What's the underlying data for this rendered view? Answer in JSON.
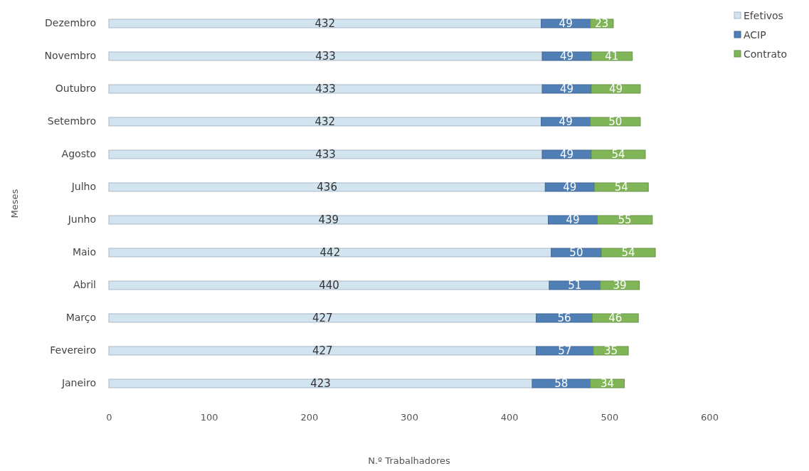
{
  "chart_data": {
    "type": "bar",
    "orientation": "horizontal",
    "stacked": true,
    "xlabel": "N.º Trabalhadores",
    "ylabel": "Meses",
    "categories": [
      "Dezembro",
      "Novembro",
      "Outubro",
      "Setembro",
      "Agosto",
      "Julho",
      "Junho",
      "Maio",
      "Abril",
      "Março",
      "Fevereiro",
      "Janeiro"
    ],
    "series": [
      {
        "name": "Efetivos",
        "color": "#d3e4f1",
        "values": [
          432,
          433,
          433,
          432,
          433,
          436,
          439,
          442,
          440,
          427,
          427,
          423
        ]
      },
      {
        "name": "ACIP",
        "color": "#4f7fb5",
        "values": [
          49,
          49,
          49,
          49,
          49,
          49,
          49,
          50,
          51,
          56,
          57,
          58
        ]
      },
      {
        "name": "Contrato",
        "color": "#80b558",
        "values": [
          23,
          41,
          49,
          50,
          54,
          54,
          55,
          54,
          39,
          46,
          35,
          34
        ]
      }
    ],
    "xlim": [
      0,
      600
    ],
    "xticks": [
      0,
      100,
      200,
      300,
      400,
      500,
      600
    ],
    "grid": false,
    "legend": "top right",
    "data_labels": true
  }
}
